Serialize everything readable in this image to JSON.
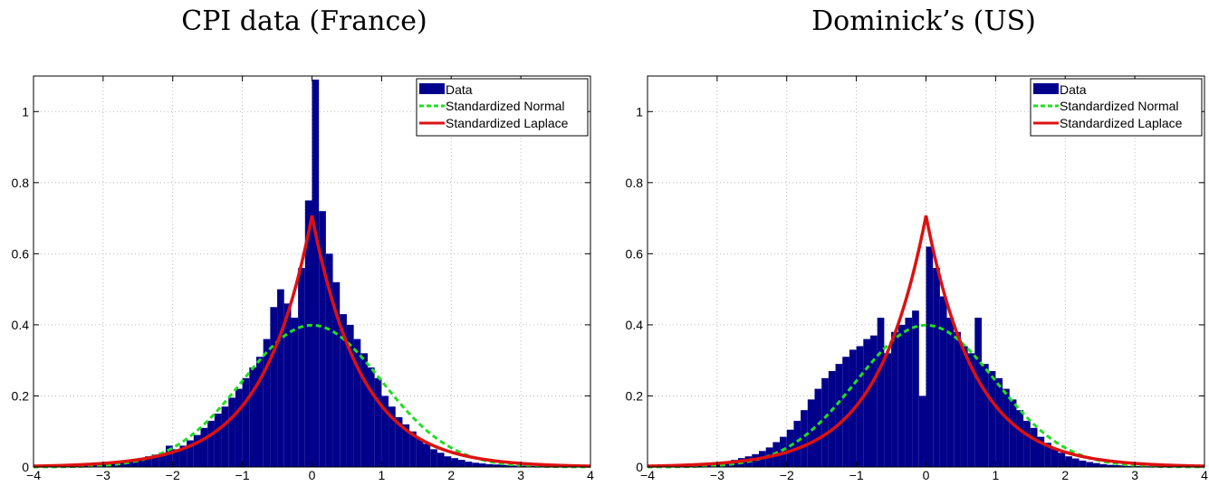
{
  "chart_data": [
    {
      "type": "histogram",
      "title": "CPI data (France)",
      "xlabel": "",
      "ylabel": "",
      "xlim": [
        -4,
        4
      ],
      "ylim": [
        0,
        1.1
      ],
      "xticks": [
        -4,
        -3,
        -2,
        -1,
        0,
        1,
        2,
        3,
        4
      ],
      "yticks": [
        0,
        0.2,
        0.4,
        0.6,
        0.8,
        1
      ],
      "grid": true,
      "legend_position": "top-right",
      "legend": [
        "Data",
        "Standardized Normal",
        "Standardized Laplace"
      ],
      "histogram": {
        "name": "Data",
        "color": "#00008B",
        "bin_width": 0.1,
        "x": [
          -3.95,
          -3.85,
          -3.75,
          -3.65,
          -3.55,
          -3.45,
          -3.35,
          -3.25,
          -3.15,
          -3.05,
          -2.95,
          -2.85,
          -2.75,
          -2.65,
          -2.55,
          -2.45,
          -2.35,
          -2.25,
          -2.15,
          -2.05,
          -1.95,
          -1.85,
          -1.75,
          -1.65,
          -1.55,
          -1.45,
          -1.35,
          -1.25,
          -1.15,
          -1.05,
          -0.95,
          -0.85,
          -0.75,
          -0.65,
          -0.55,
          -0.45,
          -0.35,
          -0.25,
          -0.15,
          -0.05,
          0.05,
          0.15,
          0.25,
          0.35,
          0.45,
          0.55,
          0.65,
          0.75,
          0.85,
          0.95,
          1.05,
          1.15,
          1.25,
          1.35,
          1.45,
          1.55,
          1.65,
          1.75,
          1.85,
          1.95,
          2.05,
          2.15,
          2.25,
          2.35,
          2.45,
          2.55,
          2.65,
          2.75,
          2.85,
          2.95,
          3.05,
          3.15,
          3.25,
          3.35,
          3.45,
          3.55,
          3.65,
          3.75,
          3.85,
          3.95
        ],
        "y": [
          0.002,
          0.002,
          0.003,
          0.003,
          0.004,
          0.005,
          0.006,
          0.007,
          0.008,
          0.009,
          0.01,
          0.012,
          0.015,
          0.017,
          0.02,
          0.025,
          0.03,
          0.035,
          0.04,
          0.06,
          0.05,
          0.06,
          0.075,
          0.09,
          0.11,
          0.13,
          0.15,
          0.17,
          0.195,
          0.22,
          0.25,
          0.28,
          0.31,
          0.36,
          0.45,
          0.5,
          0.46,
          0.42,
          0.56,
          0.75,
          1.09,
          0.72,
          0.6,
          0.52,
          0.43,
          0.4,
          0.36,
          0.32,
          0.28,
          0.25,
          0.2,
          0.17,
          0.14,
          0.12,
          0.1,
          0.08,
          0.065,
          0.05,
          0.04,
          0.03,
          0.025,
          0.02,
          0.015,
          0.012,
          0.01,
          0.008,
          0.007,
          0.006,
          0.005,
          0.004,
          0.004,
          0.003,
          0.003,
          0.002,
          0.002,
          0.002,
          0.002,
          0.001,
          0.001,
          0.001
        ]
      },
      "curves": [
        {
          "name": "Standardized Normal",
          "color": "#22dd22",
          "dashed": true,
          "distribution": "normal",
          "mean": 0,
          "sd": 1
        },
        {
          "name": "Standardized Laplace",
          "color": "#dd1111",
          "dashed": false,
          "distribution": "laplace",
          "mean": 0,
          "sd": 1
        }
      ]
    },
    {
      "type": "histogram",
      "title": "Dominick’s (US)",
      "xlabel": "",
      "ylabel": "",
      "xlim": [
        -4,
        4
      ],
      "ylim": [
        0,
        1.1
      ],
      "xticks": [
        -4,
        -3,
        -2,
        -1,
        0,
        1,
        2,
        3,
        4
      ],
      "yticks": [
        0,
        0.2,
        0.4,
        0.6,
        0.8,
        1
      ],
      "grid": true,
      "legend_position": "top-right",
      "legend": [
        "Data",
        "Standardized Normal",
        "Standardized Laplace"
      ],
      "histogram": {
        "name": "Data",
        "color": "#00008B",
        "bin_width": 0.1,
        "x": [
          -3.95,
          -3.85,
          -3.75,
          -3.65,
          -3.55,
          -3.45,
          -3.35,
          -3.25,
          -3.15,
          -3.05,
          -2.95,
          -2.85,
          -2.75,
          -2.65,
          -2.55,
          -2.45,
          -2.35,
          -2.25,
          -2.15,
          -2.05,
          -1.95,
          -1.85,
          -1.75,
          -1.65,
          -1.55,
          -1.45,
          -1.35,
          -1.25,
          -1.15,
          -1.05,
          -0.95,
          -0.85,
          -0.75,
          -0.65,
          -0.55,
          -0.45,
          -0.35,
          -0.25,
          -0.15,
          -0.05,
          0.05,
          0.15,
          0.25,
          0.35,
          0.45,
          0.55,
          0.65,
          0.75,
          0.85,
          0.95,
          1.05,
          1.15,
          1.25,
          1.35,
          1.45,
          1.55,
          1.65,
          1.75,
          1.85,
          1.95,
          2.05,
          2.15,
          2.25,
          2.35,
          2.45,
          2.55,
          2.65,
          2.75,
          2.85,
          2.95,
          3.05,
          3.15,
          3.25,
          3.35,
          3.45,
          3.55,
          3.65,
          3.75,
          3.85,
          3.95
        ],
        "y": [
          0.002,
          0.002,
          0.003,
          0.003,
          0.004,
          0.005,
          0.006,
          0.008,
          0.01,
          0.012,
          0.014,
          0.016,
          0.02,
          0.025,
          0.03,
          0.036,
          0.045,
          0.055,
          0.07,
          0.085,
          0.105,
          0.13,
          0.16,
          0.19,
          0.22,
          0.25,
          0.27,
          0.29,
          0.31,
          0.33,
          0.34,
          0.36,
          0.37,
          0.42,
          0.32,
          0.38,
          0.4,
          0.42,
          0.44,
          0.2,
          0.62,
          0.56,
          0.48,
          0.42,
          0.38,
          0.34,
          0.32,
          0.42,
          0.29,
          0.27,
          0.25,
          0.22,
          0.19,
          0.16,
          0.13,
          0.11,
          0.085,
          0.068,
          0.05,
          0.04,
          0.03,
          0.024,
          0.018,
          0.014,
          0.011,
          0.008,
          0.006,
          0.005,
          0.004,
          0.003,
          0.003,
          0.002,
          0.002,
          0.002,
          0.001,
          0.001,
          0.001,
          0.001,
          0.001,
          0.001
        ]
      },
      "curves": [
        {
          "name": "Standardized Normal",
          "color": "#22dd22",
          "dashed": true,
          "distribution": "normal",
          "mean": 0,
          "sd": 1
        },
        {
          "name": "Standardized Laplace",
          "color": "#dd1111",
          "dashed": false,
          "distribution": "laplace",
          "mean": 0,
          "sd": 1
        }
      ]
    }
  ]
}
